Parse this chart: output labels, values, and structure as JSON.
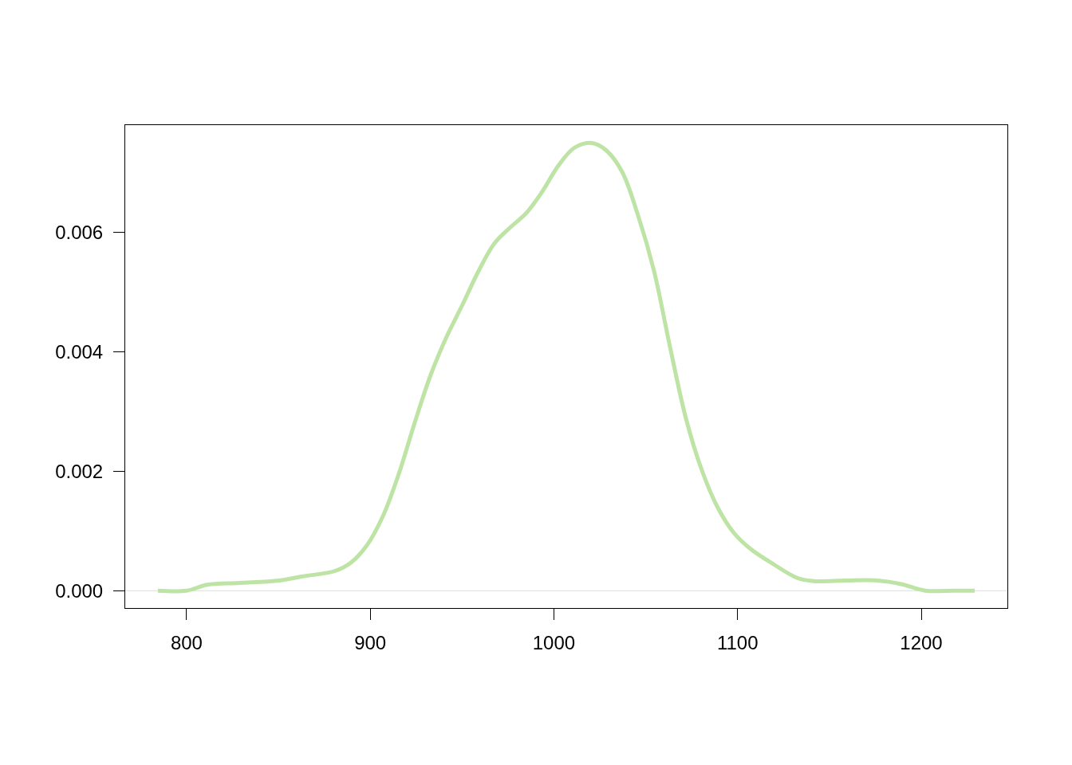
{
  "chart_data": {
    "type": "line",
    "x": [
      784.4,
      800,
      811.3,
      828.7,
      850.4,
      863.4,
      880.8,
      889.5,
      898.2,
      906.8,
      915.5,
      924.2,
      932.9,
      941.6,
      950.3,
      959.0,
      967.6,
      976.3,
      985.0,
      993.7,
      1002.4,
      1011.1,
      1020.6,
      1028.4,
      1037.1,
      1045.8,
      1054.5,
      1063.2,
      1071.9,
      1080.6,
      1089.2,
      1097.9,
      1106.6,
      1119.7,
      1132.7,
      1141.4,
      1158.7,
      1176.1,
      1189.1,
      1202.2,
      1217.4,
      1229.1
    ],
    "series": [
      {
        "color": "#bde3a5",
        "values": [
          0,
          0,
          0.0001,
          0.00013,
          0.00017,
          0.00024,
          0.00033,
          0.00047,
          0.00076,
          0.00124,
          0.00195,
          0.00281,
          0.00361,
          0.00425,
          0.00479,
          0.00535,
          0.00581,
          0.00608,
          0.00632,
          0.00668,
          0.00711,
          0.00741,
          0.00749,
          0.00737,
          0.00701,
          0.00628,
          0.00535,
          0.00408,
          0.00288,
          0.00201,
          0.00139,
          0.00097,
          0.00071,
          0.00044,
          0.00021,
          0.00016,
          0.00017,
          0.00017,
          0.00011,
          0,
          0,
          0
        ]
      }
    ],
    "xlim": [
      766.6,
      1246.9
    ],
    "xticks": [
      800,
      900,
      1000,
      1100,
      1200
    ],
    "ylim": [
      -0.00029,
      0.00779
    ],
    "yticks": [
      {
        "value": 0,
        "label": "0.000"
      },
      {
        "value": 0.002,
        "label": "0.002"
      },
      {
        "value": 0.004,
        "label": "0.004"
      },
      {
        "value": 0.006,
        "label": "0.006"
      }
    ],
    "ref_lines": [
      {
        "axis": "y",
        "value": 0,
        "color": "#dddddd"
      }
    ],
    "grid": false,
    "legend": false,
    "marker": "none",
    "line_style": "solid"
  }
}
